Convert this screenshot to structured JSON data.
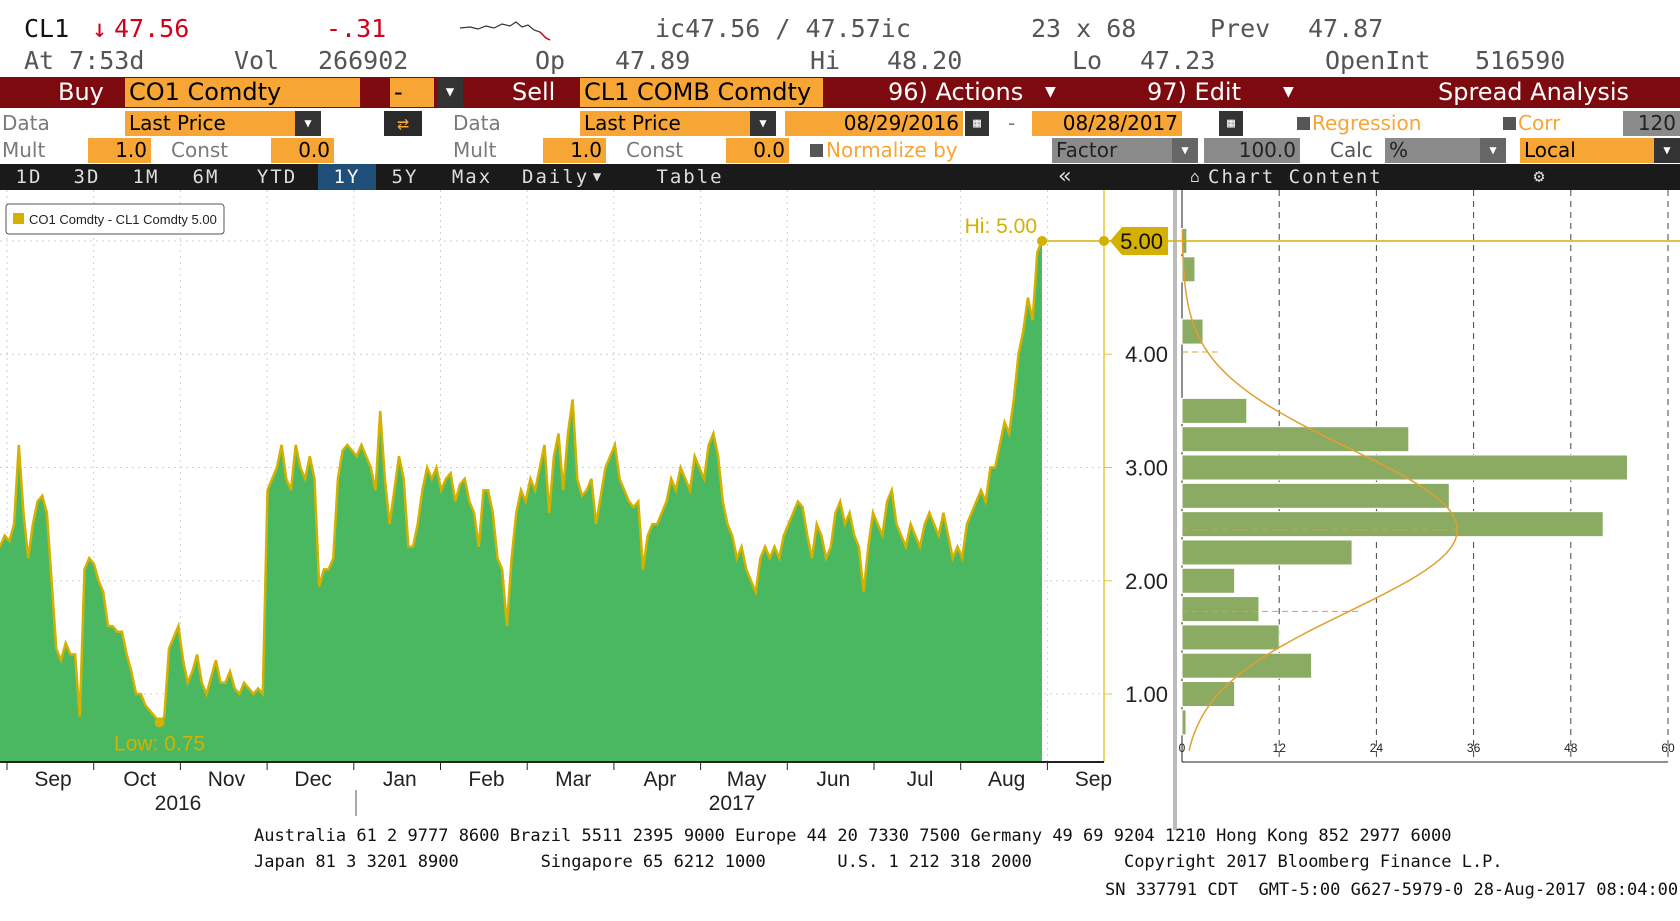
{
  "header": {
    "ticker": "CL1",
    "arrow": "↓",
    "last": "47.56",
    "change": "-.31",
    "quote": "ic47.56 / 47.57ic",
    "size": "23 x 68",
    "prev_label": "Prev",
    "prev_value": "47.87",
    "time": "At 7:53d",
    "vol_label": "Vol",
    "vol_value": "266902",
    "op_label": "Op",
    "op_value": "47.89",
    "hi_label": "Hi",
    "hi_value": "48.20",
    "lo_label": "Lo",
    "lo_value": "47.23",
    "oi_label": "OpenInt",
    "oi_value": "516590"
  },
  "actionbar": {
    "buy_label": "Buy",
    "buy_security": "CO1 Comdty",
    "operator": "-",
    "sell_label": "Sell",
    "sell_security": "CL1 COMB Comdty",
    "actions_label": "96) Actions",
    "edit_label": "97) Edit",
    "spread_label": "Spread Analysis"
  },
  "settings": {
    "data_label": "Data",
    "data1": "Last Price",
    "data2": "Last Price",
    "start_date": "08/29/2016",
    "dash": "-",
    "end_date": "08/28/2017",
    "regression": "Regression",
    "corr": "Corr",
    "corr_value": "120",
    "mult_label": "Mult",
    "mult1": "1.0",
    "const_label": "Const",
    "const1": "0.0",
    "mult2": "1.0",
    "const2": "0.0",
    "normalize": "Normalize by",
    "factor": "Factor",
    "factor_value": "100.0",
    "calc_label": "Calc",
    "calc_value": "%",
    "local": "Local"
  },
  "tabs": [
    "1D",
    "3D",
    "1M",
    "6M",
    "YTD",
    "1Y",
    "5Y",
    "Max"
  ],
  "active_tab": "1Y",
  "periodicity": "Daily",
  "table_label": "Table",
  "chart_content_label": "Chart Content",
  "chart_data": {
    "type": "area",
    "legend": "CO1 Comdty - CL1 Comdty 5.00",
    "series_color": "#4ab860",
    "line_color": "#d4b000",
    "hi_label": "Hi: 5.00",
    "low_label": "Low: 0.75",
    "last_value": "5.00",
    "ylim": [
      0.4,
      5.45
    ],
    "y_ticks": [
      "1.00",
      "2.00",
      "3.00",
      "4.00",
      "5.00"
    ],
    "x_ticks": [
      "Sep",
      "Oct",
      "Nov",
      "Dec",
      "Jan",
      "Feb",
      "Mar",
      "Apr",
      "May",
      "Jun",
      "Jul",
      "Aug",
      "Sep"
    ],
    "years": [
      "2016",
      "2017"
    ],
    "values": [
      2.3,
      2.4,
      2.35,
      2.5,
      3.2,
      2.6,
      2.2,
      2.5,
      2.7,
      2.75,
      2.6,
      2.0,
      1.4,
      1.3,
      1.45,
      1.35,
      1.35,
      0.8,
      2.1,
      2.2,
      2.15,
      2.0,
      1.9,
      1.6,
      1.6,
      1.55,
      1.55,
      1.35,
      1.2,
      1.0,
      1.0,
      0.9,
      0.85,
      0.8,
      0.75,
      0.8,
      1.4,
      1.5,
      1.6,
      1.3,
      1.1,
      1.2,
      1.35,
      1.1,
      1.0,
      1.15,
      1.3,
      1.1,
      1.1,
      1.2,
      1.05,
      1.0,
      1.1,
      1.05,
      1.0,
      1.05,
      1.0,
      2.8,
      2.9,
      3.0,
      3.2,
      2.9,
      2.8,
      3.2,
      3.0,
      2.9,
      3.1,
      2.9,
      1.95,
      2.1,
      2.1,
      2.2,
      2.9,
      3.15,
      3.2,
      3.15,
      3.1,
      3.2,
      3.1,
      3.0,
      2.8,
      3.5,
      2.9,
      2.5,
      2.8,
      3.1,
      2.9,
      2.3,
      2.3,
      2.5,
      2.8,
      3.0,
      2.9,
      3.0,
      2.8,
      2.9,
      2.95,
      2.7,
      2.85,
      2.9,
      2.7,
      2.6,
      2.3,
      2.8,
      2.8,
      2.6,
      2.2,
      2.1,
      1.6,
      2.2,
      2.6,
      2.8,
      2.7,
      2.9,
      2.8,
      3.0,
      3.2,
      2.6,
      3.1,
      3.3,
      2.8,
      3.3,
      3.6,
      2.9,
      2.75,
      2.8,
      2.9,
      2.5,
      2.75,
      3.0,
      3.1,
      3.2,
      2.9,
      2.8,
      2.7,
      2.65,
      2.7,
      2.1,
      2.4,
      2.5,
      2.5,
      2.6,
      2.7,
      2.9,
      2.8,
      3.0,
      2.9,
      2.8,
      3.1,
      3.0,
      2.9,
      3.2,
      3.3,
      3.1,
      2.7,
      2.5,
      2.4,
      2.2,
      2.3,
      2.1,
      2.0,
      1.9,
      2.2,
      2.3,
      2.2,
      2.3,
      2.2,
      2.4,
      2.5,
      2.6,
      2.7,
      2.65,
      2.4,
      2.2,
      2.5,
      2.4,
      2.2,
      2.3,
      2.6,
      2.7,
      2.5,
      2.6,
      2.4,
      2.3,
      1.9,
      2.3,
      2.6,
      2.5,
      2.4,
      2.7,
      2.8,
      2.5,
      2.4,
      2.3,
      2.5,
      2.4,
      2.3,
      2.5,
      2.6,
      2.5,
      2.4,
      2.6,
      2.4,
      2.2,
      2.3,
      2.2,
      2.5,
      2.6,
      2.7,
      2.8,
      2.7,
      3.0,
      3.0,
      3.2,
      3.4,
      3.3,
      3.6,
      4.0,
      4.2,
      4.5,
      4.3,
      4.9,
      5.0
    ],
    "histogram": {
      "xlim": [
        0,
        60
      ],
      "x_ticks": [
        "0",
        "12",
        "24",
        "36",
        "48",
        "60"
      ],
      "bins": [
        {
          "center": 5.0,
          "count": 0.6
        },
        {
          "center": 4.75,
          "count": 1.6
        },
        {
          "center": 4.5,
          "count": 0
        },
        {
          "center": 4.2,
          "count": 2.6
        },
        {
          "center": 3.5,
          "count": 8
        },
        {
          "center": 3.25,
          "count": 28
        },
        {
          "center": 3.0,
          "count": 55
        },
        {
          "center": 2.75,
          "count": 33
        },
        {
          "center": 2.5,
          "count": 52
        },
        {
          "center": 2.25,
          "count": 21
        },
        {
          "center": 2.0,
          "count": 6.5
        },
        {
          "center": 1.75,
          "count": 9.5
        },
        {
          "center": 1.5,
          "count": 12
        },
        {
          "center": 1.25,
          "count": 16
        },
        {
          "center": 1.0,
          "count": 6.5
        },
        {
          "center": 0.75,
          "count": 0.5
        }
      ]
    }
  },
  "footer": {
    "line1": "Australia 61 2 9777 8600 Brazil 5511 2395 9000 Europe 44 20 7330 7500 Germany 49 69 9204 1210 Hong Kong 852 2977 6000",
    "line2": "Japan 81 3 3201 8900        Singapore 65 6212 1000       U.S. 1 212 318 2000         Copyright 2017 Bloomberg Finance L.P.",
    "line3": "SN 337791 CDT  GMT-5:00 G627-5979-0 28-Aug-2017 08:04:00"
  },
  "colors": {
    "brand_bar": "#7c0a0f",
    "field": "#f7a534",
    "accent_gold": "#d4b000"
  }
}
